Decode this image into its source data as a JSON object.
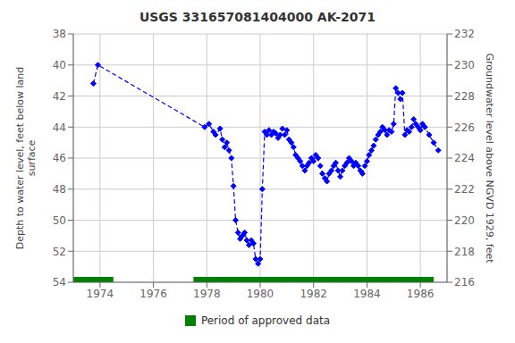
{
  "chart_data": {
    "type": "line",
    "title": "USGS 331657081404000 AK-2071",
    "ylabel": "Depth to water level, feet below land\nsurface",
    "y2label": "Groundwater level above NGVD 1929, feet",
    "x": [
      1973.75,
      1973.92,
      1977.92,
      1978.08,
      1978.25,
      1978.33,
      1978.5,
      1978.58,
      1978.67,
      1978.75,
      1978.83,
      1978.92,
      1979.0,
      1979.08,
      1979.17,
      1979.25,
      1979.33,
      1979.42,
      1979.5,
      1979.58,
      1979.67,
      1979.75,
      1979.83,
      1979.92,
      1980.0,
      1980.08,
      1980.17,
      1980.25,
      1980.33,
      1980.42,
      1980.5,
      1980.58,
      1980.67,
      1980.75,
      1980.83,
      1980.92,
      1981.0,
      1981.08,
      1981.17,
      1981.25,
      1981.33,
      1981.42,
      1981.5,
      1981.58,
      1981.67,
      1981.75,
      1981.83,
      1981.92,
      1982.0,
      1982.08,
      1982.17,
      1982.25,
      1982.33,
      1982.42,
      1982.5,
      1982.58,
      1982.67,
      1982.75,
      1982.83,
      1982.92,
      1983.0,
      1983.08,
      1983.17,
      1983.25,
      1983.33,
      1983.42,
      1983.5,
      1983.58,
      1983.67,
      1983.75,
      1983.83,
      1983.92,
      1984.0,
      1984.08,
      1984.17,
      1984.25,
      1984.33,
      1984.42,
      1984.5,
      1984.58,
      1984.67,
      1984.75,
      1984.83,
      1984.92,
      1985.0,
      1985.08,
      1985.17,
      1985.25,
      1985.33,
      1985.42,
      1985.5,
      1985.58,
      1985.67,
      1985.75,
      1985.83,
      1985.92,
      1986.0,
      1986.08,
      1986.17,
      1986.33,
      1986.5,
      1986.67
    ],
    "values": [
      41.2,
      40.0,
      44.0,
      43.8,
      44.3,
      44.5,
      44.1,
      44.8,
      45.3,
      45.0,
      45.5,
      46.0,
      47.8,
      50.0,
      50.8,
      51.2,
      51.0,
      50.8,
      51.3,
      51.6,
      51.3,
      51.5,
      52.5,
      52.8,
      52.5,
      48.0,
      44.3,
      44.5,
      44.2,
      44.5,
      44.3,
      44.4,
      44.7,
      44.5,
      44.1,
      44.5,
      44.2,
      44.8,
      45.0,
      45.3,
      45.8,
      46.0,
      46.2,
      46.5,
      46.8,
      46.5,
      46.3,
      46.0,
      46.2,
      45.8,
      46.0,
      46.5,
      47.0,
      47.3,
      47.5,
      47.0,
      46.8,
      46.5,
      46.3,
      46.8,
      47.2,
      46.8,
      46.5,
      46.3,
      46.0,
      46.2,
      46.5,
      46.3,
      46.5,
      46.8,
      47.0,
      46.5,
      46.2,
      45.8,
      45.5,
      45.2,
      44.8,
      44.5,
      44.3,
      44.0,
      44.2,
      44.5,
      44.2,
      44.3,
      43.8,
      41.5,
      41.8,
      42.2,
      41.8,
      44.5,
      44.2,
      44.3,
      44.0,
      43.5,
      43.8,
      44.0,
      44.2,
      43.8,
      44.0,
      44.5,
      45.0,
      45.5
    ],
    "color": "#0000ff",
    "marker": "diamond",
    "line_style": "dashed",
    "xlim": [
      1973.0,
      1987.0
    ],
    "xticks": [
      1974,
      1976,
      1978,
      1980,
      1982,
      1984,
      1986
    ],
    "ylim": [
      54,
      38
    ],
    "yticks": [
      38,
      40,
      42,
      44,
      46,
      48,
      50,
      52,
      54
    ],
    "y2lim": [
      216,
      232
    ],
    "y2ticks": [
      232,
      230,
      228,
      226,
      224,
      222,
      220,
      218,
      216
    ],
    "grid": true,
    "legend": "bottom",
    "approved_periods": {
      "name": "Period of approved data",
      "color": "#008000",
      "ranges": [
        [
          1973.0,
          1974.5
        ],
        [
          1977.5,
          1986.5
        ]
      ]
    }
  }
}
